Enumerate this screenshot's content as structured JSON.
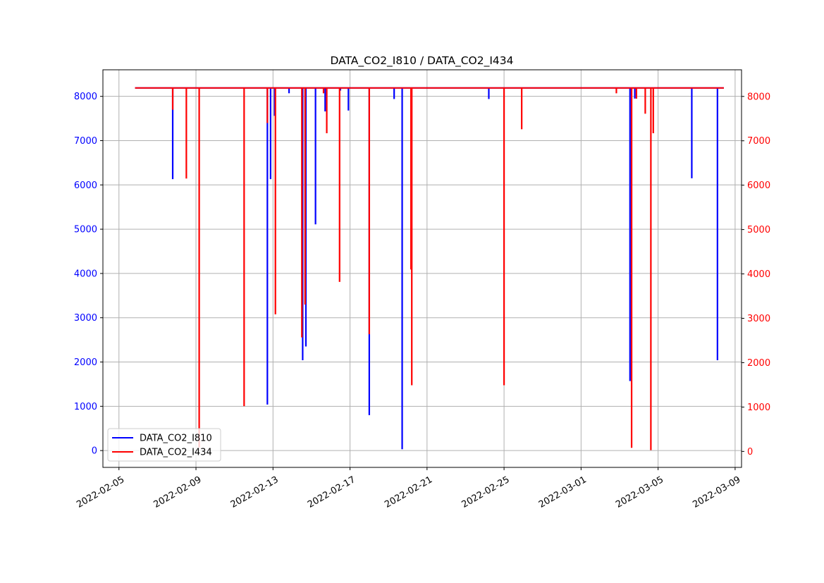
{
  "chart_data": {
    "type": "line",
    "title": "DATA_CO2_I810 / DATA_CO2_I434",
    "xlabel": "",
    "ylabel": "",
    "x_range": [
      "2022-02-04T04:00",
      "2022-03-09T08:00"
    ],
    "x_ticks": [
      "2022-02-05",
      "2022-02-09",
      "2022-02-13",
      "2022-02-17",
      "2022-02-21",
      "2022-02-25",
      "2022-03-01",
      "2022-03-05",
      "2022-03-09"
    ],
    "grid": true,
    "legend_position": "lower-left",
    "axes": {
      "left": {
        "series": "DATA_CO2_I810",
        "color": "#0000ff",
        "ylim": [
          -380,
          8600
        ],
        "ticks": [
          "0",
          "1000",
          "2000",
          "3000",
          "4000",
          "5000",
          "6000",
          "7000",
          "8000"
        ]
      },
      "right": {
        "series": "DATA_CO2_I434",
        "color": "#ff0000",
        "ylim": [
          -360,
          8600
        ],
        "ticks": [
          "0",
          "1000",
          "2000",
          "3000",
          "4000",
          "5000",
          "6000",
          "7000",
          "8000"
        ]
      }
    },
    "series": [
      {
        "name": "DATA_CO2_I810",
        "color": "#0000ff",
        "axis": "left",
        "baseline": 8190,
        "x_start": "2022-02-05T20:00",
        "x_end": "2022-03-08T10:00",
        "dips": [
          {
            "x": "2022-02-07T19:00",
            "y": 6130
          },
          {
            "x": "2022-02-12T17:00",
            "y": 1040
          },
          {
            "x": "2022-02-12T21:00",
            "y": 6130
          },
          {
            "x": "2022-02-13T02:00",
            "y": 7560
          },
          {
            "x": "2022-02-13T20:00",
            "y": 8070
          },
          {
            "x": "2022-02-14T13:00",
            "y": 2040
          },
          {
            "x": "2022-02-14T17:00",
            "y": 2350
          },
          {
            "x": "2022-02-15T05:00",
            "y": 5110
          },
          {
            "x": "2022-02-15T17:00",
            "y": 7660
          },
          {
            "x": "2022-02-16T12:00",
            "y": 8130
          },
          {
            "x": "2022-02-16T22:00",
            "y": 7680
          },
          {
            "x": "2022-02-18T00:00",
            "y": 800
          },
          {
            "x": "2022-02-19T07:00",
            "y": 7940
          },
          {
            "x": "2022-02-19T17:00",
            "y": 30
          },
          {
            "x": "2022-02-24T05:00",
            "y": 7940
          },
          {
            "x": "2022-03-03T13:00",
            "y": 1570
          },
          {
            "x": "2022-03-03T19:00",
            "y": 7950
          },
          {
            "x": "2022-03-06T18:00",
            "y": 6150
          },
          {
            "x": "2022-03-08T02:00",
            "y": 2040
          }
        ]
      },
      {
        "name": "DATA_CO2_I434",
        "color": "#ff0000",
        "axis": "right",
        "baseline": 8190,
        "x_start": "2022-02-05T20:00",
        "x_end": "2022-03-08T10:00",
        "dips": [
          {
            "x": "2022-02-07T19:00",
            "y": 7700
          },
          {
            "x": "2022-02-08T12:00",
            "y": 6150
          },
          {
            "x": "2022-02-09T04:00",
            "y": 90
          },
          {
            "x": "2022-02-11T12:00",
            "y": 1020
          },
          {
            "x": "2022-02-12T17:00",
            "y": 7400
          },
          {
            "x": "2022-02-13T03:00",
            "y": 3090
          },
          {
            "x": "2022-02-14T12:00",
            "y": 2570
          },
          {
            "x": "2022-02-14T16:00",
            "y": 3310
          },
          {
            "x": "2022-02-15T15:00",
            "y": 8070
          },
          {
            "x": "2022-02-15T19:00",
            "y": 7170
          },
          {
            "x": "2022-02-16T11:00",
            "y": 3820
          },
          {
            "x": "2022-02-18T00:00",
            "y": 2640
          },
          {
            "x": "2022-02-20T05:00",
            "y": 1490
          },
          {
            "x": "2022-02-20T04:00",
            "y": 4100
          },
          {
            "x": "2022-02-25T00:00",
            "y": 1490
          },
          {
            "x": "2022-02-25T22:00",
            "y": 7260
          },
          {
            "x": "2022-03-02T20:00",
            "y": 8070
          },
          {
            "x": "2022-03-03T15:00",
            "y": 80
          },
          {
            "x": "2022-03-03T21:00",
            "y": 7950
          },
          {
            "x": "2022-03-04T08:00",
            "y": 7610
          },
          {
            "x": "2022-03-04T15:00",
            "y": 30
          },
          {
            "x": "2022-03-04T18:00",
            "y": 7170
          }
        ]
      }
    ]
  }
}
